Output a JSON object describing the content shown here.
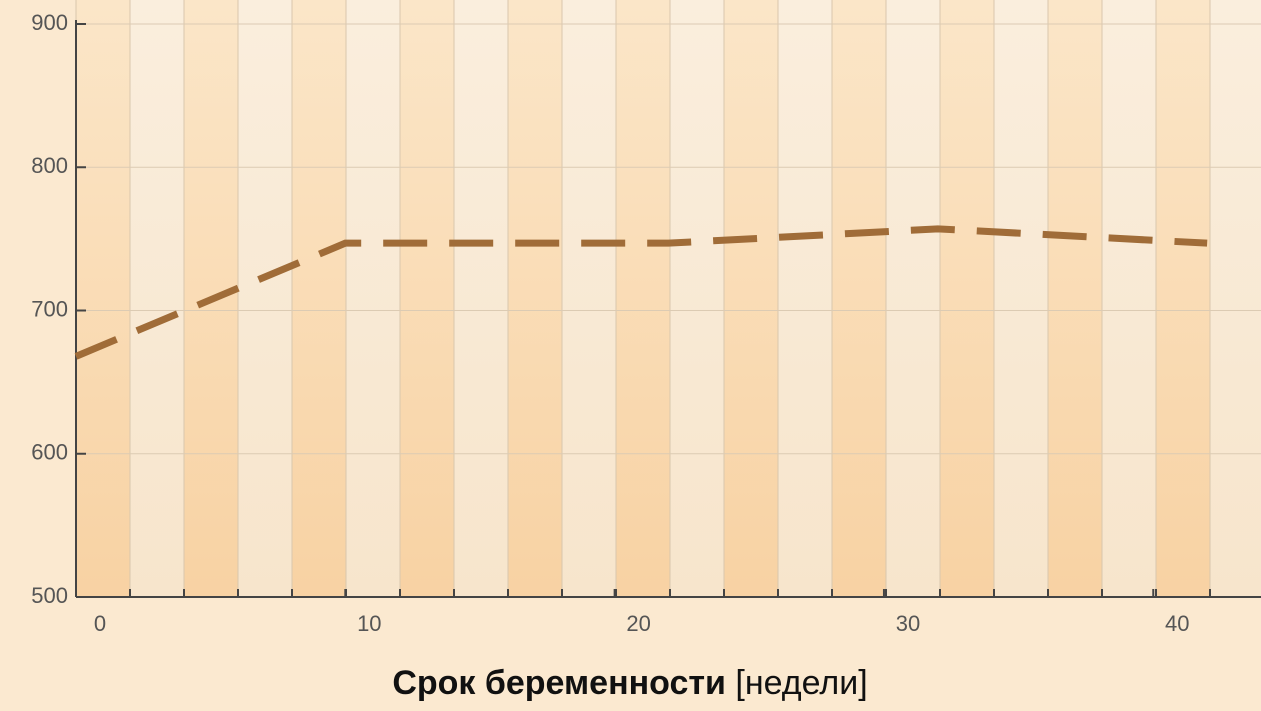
{
  "chart_data": {
    "type": "line",
    "x_label": {
      "main": "Срок беременности",
      "unit": "[недели]"
    },
    "x": [
      0,
      10,
      22,
      32,
      42
    ],
    "series": [
      {
        "values": [
          668,
          747,
          747,
          757,
          747
        ],
        "color": "#a06c38"
      }
    ],
    "xlim": [
      0,
      44
    ],
    "xticks": [
      0,
      10,
      20,
      30,
      40
    ],
    "ylim": [
      500,
      900
    ],
    "yticks": [
      500,
      600,
      700,
      800,
      900
    ],
    "dashed": true
  }
}
